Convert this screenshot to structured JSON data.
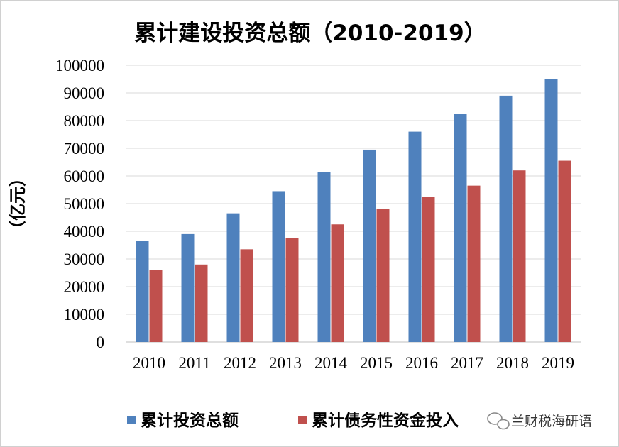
{
  "chart_data": {
    "type": "bar",
    "title": "累计建设投资总额（2010-2019）",
    "ylabel": "（亿元）",
    "categories": [
      "2010",
      "2011",
      "2012",
      "2013",
      "2014",
      "2015",
      "2016",
      "2017",
      "2018",
      "2019"
    ],
    "series": [
      {
        "name": "累计投资总额",
        "color": "#4f81bd",
        "values": [
          36500,
          39000,
          46500,
          54500,
          61500,
          69500,
          76000,
          82500,
          89000,
          95000
        ]
      },
      {
        "name": "累计债务性资金投入",
        "color": "#c0504d",
        "values": [
          26000,
          28000,
          33500,
          37500,
          42500,
          48000,
          52500,
          56500,
          62000,
          65500
        ]
      }
    ],
    "ylim": [
      0,
      100000
    ],
    "yticks": [
      "0",
      "10000",
      "20000",
      "30000",
      "40000",
      "50000",
      "60000",
      "70000",
      "80000",
      "90000",
      "100000"
    ],
    "grid": true,
    "legend_position": "bottom"
  },
  "watermark": {
    "text": "兰财税海研语",
    "icon": "wechat-icon"
  }
}
